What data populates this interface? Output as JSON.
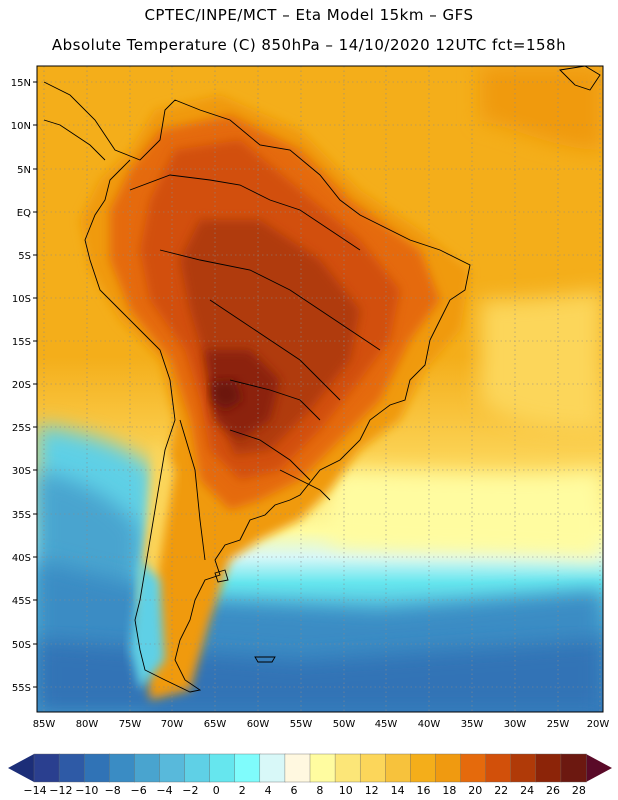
{
  "header": {
    "line1": "CPTEC/INPE/MCT –  Eta Model 15km – GFS",
    "line2": "Absolute Temperature (C) 850hPa – 14/10/2020 12UTC fct=158h"
  },
  "map": {
    "lat_ticks": [
      "15N",
      "10N",
      "5N",
      "EQ",
      "5S",
      "10S",
      "15S",
      "20S",
      "25S",
      "30S",
      "35S",
      "40S",
      "45S",
      "50S",
      "55S"
    ],
    "lon_ticks": [
      "85W",
      "80W",
      "75W",
      "70W",
      "65W",
      "60W",
      "55W",
      "50W",
      "45W",
      "40W",
      "35W",
      "30W",
      "25W",
      "20W"
    ]
  },
  "colorbar": {
    "labels": [
      "-14",
      "-12",
      "-10",
      "-8",
      "-6",
      "-4",
      "-2",
      "0",
      "2",
      "4",
      "6",
      "8",
      "10",
      "12",
      "14",
      "16",
      "18",
      "20",
      "22",
      "24",
      "26",
      "28"
    ],
    "colors": [
      "#2a3f8f",
      "#2e5aa6",
      "#3073b6",
      "#3a8cc4",
      "#49a4cf",
      "#58b9db",
      "#5fd0e6",
      "#66e6ee",
      "#7ffcfc",
      "#d8f8f8",
      "#fff8e0",
      "#fffca0",
      "#fce678",
      "#fcd65a",
      "#f7c23c",
      "#f4ae1a",
      "#f09a10",
      "#e56a0c",
      "#d2500a",
      "#b03a08",
      "#8c2408",
      "#6c1810"
    ],
    "left_arrow_color": "#1c2e78",
    "right_arrow_color": "#5a0a28"
  },
  "colors": {
    "ocean_north": "#f4ae1a",
    "ocean_mid": "#fcd65a",
    "ocean_cool": "#5fd0e6",
    "ocean_south": "#3a8cc4",
    "land_hot": "#b03a08",
    "land_warm": "#d2500a",
    "land_peak": "#6c1810"
  }
}
